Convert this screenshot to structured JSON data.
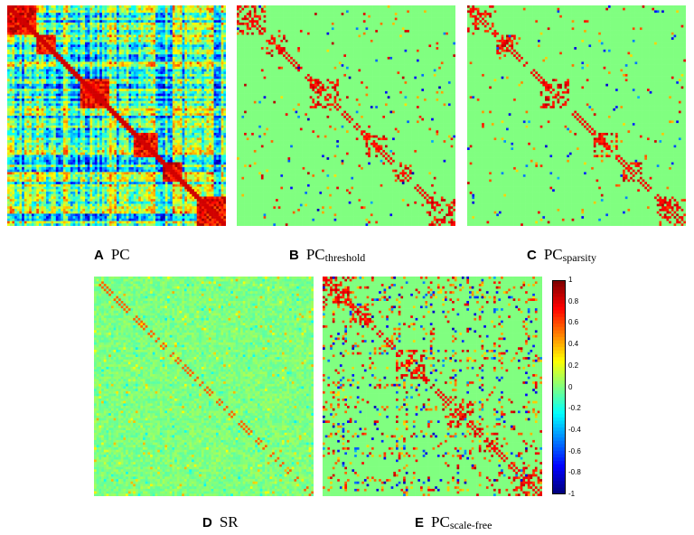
{
  "panels": [
    {
      "letter": "A",
      "base": "PC",
      "sub": "",
      "style": "dense"
    },
    {
      "letter": "B",
      "base": "PC",
      "sub": "threshold",
      "style": "threshold"
    },
    {
      "letter": "C",
      "base": "PC",
      "sub": "sparsity",
      "style": "sparsity"
    },
    {
      "letter": "D",
      "base": "SR",
      "sub": "",
      "style": "sr"
    },
    {
      "letter": "E",
      "base": "PC",
      "sub": "scale-free",
      "style": "scalefree"
    }
  ],
  "chart_data": {
    "type": "heatmap",
    "matrix_size": 90,
    "colormap": "jet",
    "value_range": [
      -1,
      1
    ],
    "colorbar_ticks": [
      "1",
      "0.8",
      "0.6",
      "0.4",
      "0.2",
      "0",
      "-0.2",
      "-0.4",
      "-0.6",
      "-0.8",
      "-1"
    ]
  }
}
